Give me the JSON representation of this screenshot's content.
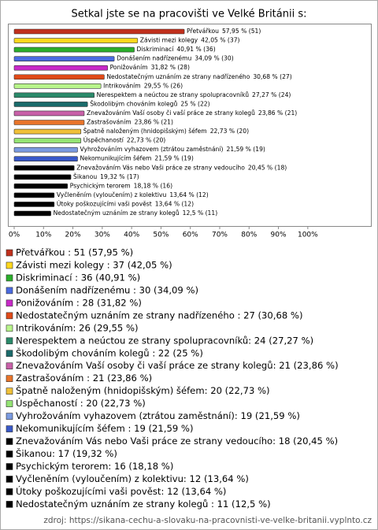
{
  "chart_data": {
    "type": "bar",
    "orientation": "horizontal",
    "title": "Setkal jste se na pracovišti ve Velké Británii s:",
    "categories": [
      "Přetvářkou",
      "Závisti mezi kolegy",
      "Diskriminací",
      "Donášením nadřízenému",
      "Ponižováním",
      "Nedostatečným uznáním ze strany nadřízeného",
      "Intrikováním",
      "Nerespektem a neúctou ze strany spolupracovníků",
      "Škodolibým chováním kolegů",
      "Znevažováním Vaší osoby či vaší práce ze strany kolegů",
      "Zastrašováním",
      "Špatně naloženým (hnidopišským) šéfem",
      "Úspěchaností",
      "Vyhrožováním vyhazovem (ztrátou zaměstnání)",
      "Nekomunikujícím šéfem",
      "Znevažováním Vás nebo Vaši práce ze strany vedoucího",
      "Šikanou",
      "Psychickým terorem",
      "Vyčleněním (vyloučením) z kolektivu",
      "Útoky poškozujícími vaši pověst",
      "Nedostatečným uznáním ze strany kolegů"
    ],
    "values": [
      57.95,
      42.05,
      40.91,
      34.09,
      31.82,
      30.68,
      29.55,
      27.27,
      25,
      23.86,
      23.86,
      22.73,
      22.73,
      21.59,
      21.59,
      20.45,
      19.32,
      18.18,
      13.64,
      13.64,
      12.5
    ],
    "value_labels": [
      "57,95 % (51)",
      "42,05 % (37)",
      "40,91 % (36)",
      "34,09 % (30)",
      "31,82 % (28)",
      "30,68 % (27)",
      "29,55 % (26)",
      "27,27 % (24)",
      "25 % (22)",
      "23,86 % (21)",
      "23,86 % (21)",
      "22,73 % (20)",
      "22,73 % (20)",
      "21,59 % (19)",
      "21,59 % (19)",
      "20,45 % (18)",
      "19,32 % (17)",
      "18,18 % (16)",
      "13,64 % (12)",
      "13,64 % (12)",
      "12,5 % (11)"
    ],
    "legend_labels": [
      "Přetvářkou : 51 (57,95 %)",
      "Závisti mezi kolegy : 37 (42,05 %)",
      "Diskriminací : 36 (40,91 %)",
      "Donášením nadřízenému : 30 (34,09 %)",
      "Ponižováním : 28 (31,82 %)",
      "Nedostatečným uznáním ze strany nadřízeného : 27 (30,68 %)",
      "Intrikováním: 26 (29,55 %)",
      "Nerespektem a neúctou ze strany spolupracovníků: 24 (27,27 %)",
      "Škodolibým chováním kolegů  : 22 (25 %)",
      "Znevažováním Vaší osoby či vaší práce ze strany kolegů: 21 (23,86 %)",
      "Zastrašováním : 21 (23,86 %)",
      "Špatně naloženým (hnidopišským) šéfem: 20 (22,73 %)",
      "Úspěchaností : 20 (22,73 %)",
      "Vyhrožováním vyhazovem (ztrátou zaměstnání): 19 (21,59 %)",
      "Nekomunikujícím šéfem : 19 (21,59 %)",
      "Znevažováním Vás nebo Vaši práce ze strany vedoucího: 18 (20,45 %)",
      "Šikanou: 17 (19,32 %)",
      "Psychickým terorem: 16 (18,18 %)",
      "Vyčleněním (vyloučením) z kolektivu: 12 (13,64 %)",
      "Útoky poškozujícími vaši pověst: 12 (13,64 %)",
      "Nedostatečným uznáním ze strany kolegů : 11 (12,5 %)"
    ],
    "colors": [
      "#c0301c",
      "#ffd81c",
      "#2aae2a",
      "#4a6ae0",
      "#c828c8",
      "#e04a18",
      "#b8f48a",
      "#2a8a6a",
      "#1a6a6a",
      "#c860a8",
      "#e8742a",
      "#f0c038",
      "#94e474",
      "#7a9ae0",
      "#3858c8",
      "#000000",
      "#000000",
      "#000000",
      "#000000",
      "#000000",
      "#000000"
    ],
    "xlim": [
      0,
      121.5
    ],
    "xticks": [
      {
        "value": 0,
        "label": "0%"
      },
      {
        "value": 10,
        "label": "10%"
      },
      {
        "value": 20,
        "label": "20%"
      },
      {
        "value": 30,
        "label": "30%"
      },
      {
        "value": 40,
        "label": "40%"
      },
      {
        "value": 50,
        "label": "50%"
      },
      {
        "value": 60,
        "label": "60%"
      },
      {
        "value": 70,
        "label": "70%"
      },
      {
        "value": 80,
        "label": "80%"
      },
      {
        "value": 90,
        "label": "90%"
      },
      {
        "value": 100,
        "label": "100%"
      }
    ],
    "source": "zdroj: https://sikana-cechu-a-slovaku-na-pracovnisti-ve-velke-britanii.vyplnto.cz"
  }
}
